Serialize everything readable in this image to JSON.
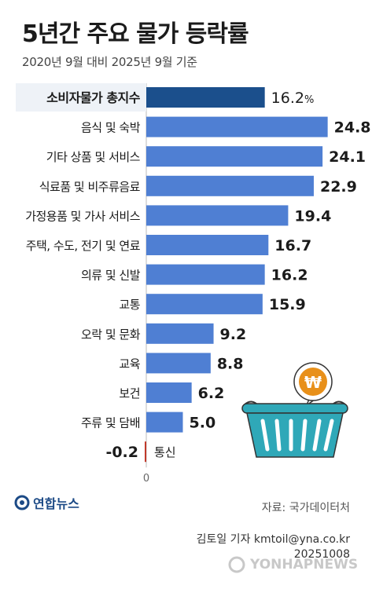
{
  "header": {
    "title": "5년간 주요 물가 등락률",
    "subtitle": "2020년 9월 대비 2025년 9월 기준"
  },
  "chart_data": {
    "type": "bar",
    "orientation": "horizontal",
    "title": "5년간 주요 물가 등락률",
    "subtitle": "2020년 9월 대비 2025년 9월 기준",
    "categories": [
      "소비자물가 총지수",
      "음식 및 숙박",
      "기타 상품 및 서비스",
      "식료품 및 비주류음료",
      "가정용품 및 가사 서비스",
      "주택, 수도, 전기 및 연료",
      "의류 및 신발",
      "교통",
      "오락 및 문화",
      "교육",
      "보건",
      "주류 및 담배",
      "통신"
    ],
    "values": [
      16.2,
      24.8,
      24.1,
      22.9,
      19.4,
      16.7,
      16.2,
      15.9,
      9.2,
      8.8,
      6.2,
      5.0,
      -0.2
    ],
    "value_labels": [
      "16.2",
      "24.8",
      "24.1",
      "22.9",
      "19.4",
      "16.7",
      "16.2",
      "15.9",
      "9.2",
      "8.8",
      "6.2",
      "5.0",
      "-0.2"
    ],
    "highlight_index": 0,
    "highlight_unit": "%",
    "zero_label": "0",
    "xlim": [
      -0.2,
      25.5
    ],
    "grid": false,
    "colors": {
      "highlight": "#1b4f8c",
      "bar": "#4f7fd3",
      "negative": "#c0392b",
      "axis": "#bbbbbb"
    }
  },
  "footer": {
    "logo_text": "연합뉴스",
    "source": "자료: 국가데이터처",
    "byline": "김토일 기자 kmtoil@yna.co.kr",
    "date": "20251008",
    "watermark": "YONHAPNEWS"
  },
  "decoration": {
    "basket_icon_color": "#2fa8b8",
    "coin_icon_color": "#e8901a",
    "coin_symbol": "₩"
  }
}
